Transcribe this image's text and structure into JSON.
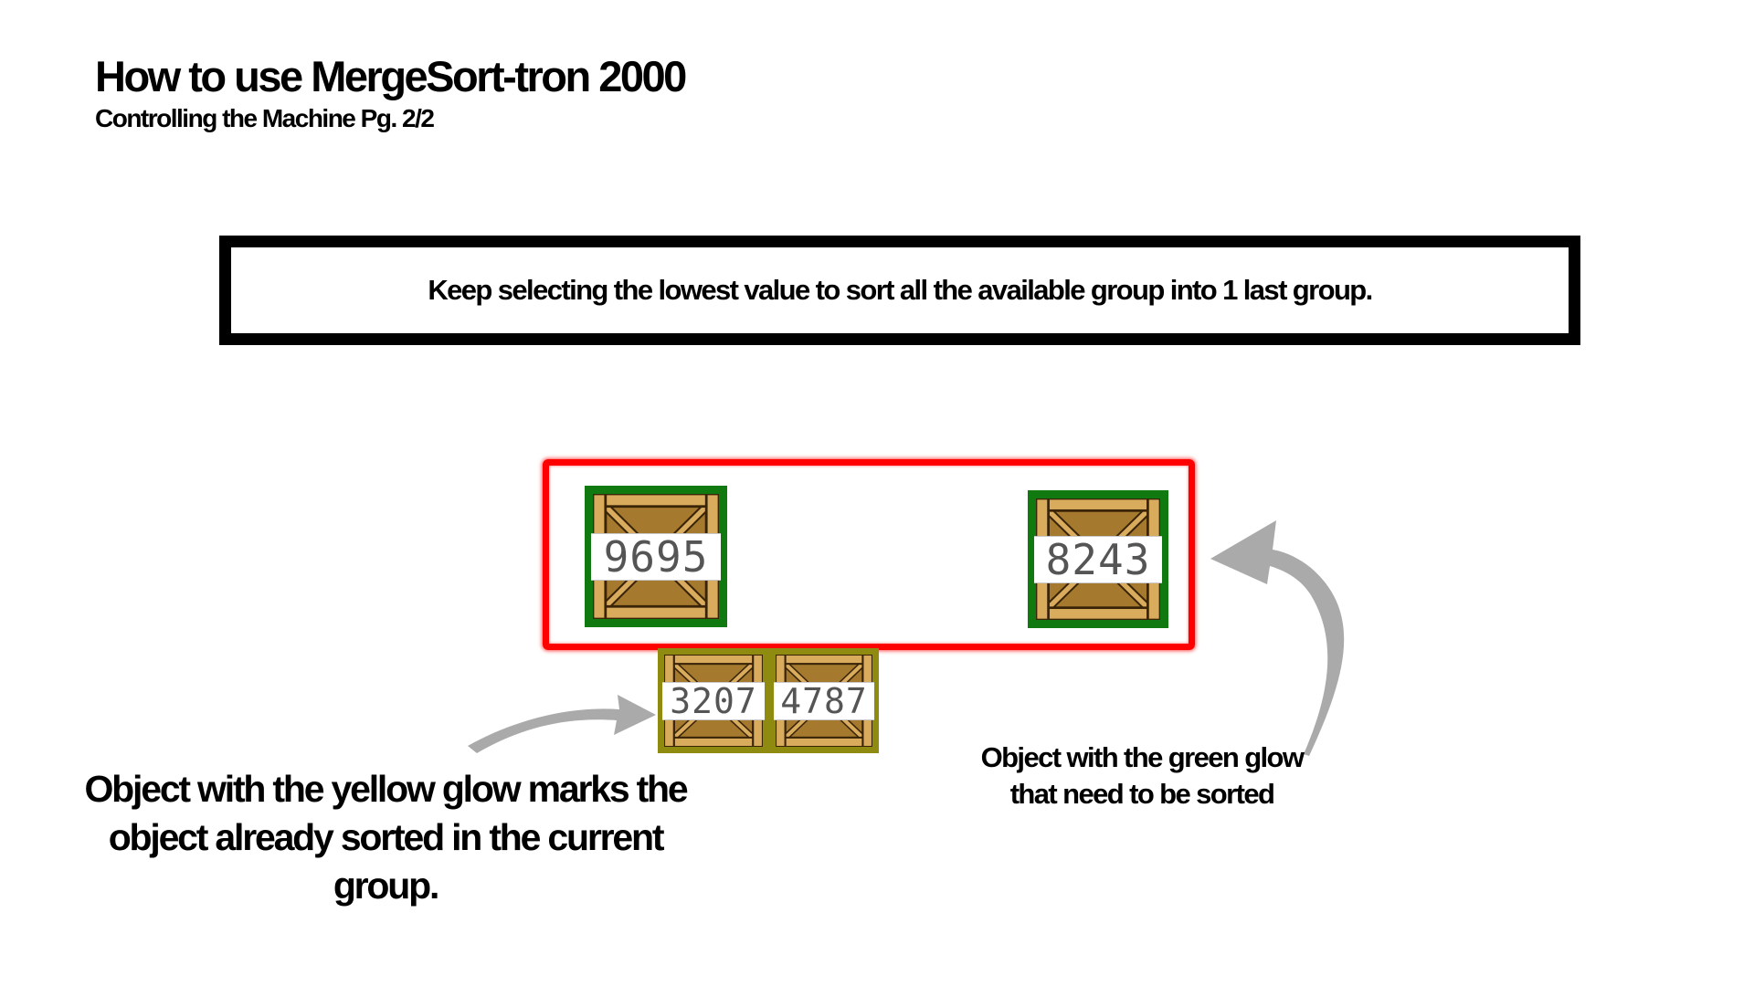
{
  "header": {
    "title": "How to use MergeSort-tron 2000",
    "subtitle": "Controlling the Machine Pg. 2/2"
  },
  "instruction": {
    "text": "Keep selecting the lowest value to sort all the available group into 1 last group."
  },
  "crates": {
    "green": [
      {
        "value": "9695"
      },
      {
        "value": "8243"
      }
    ],
    "yellow": [
      {
        "value": "3207"
      },
      {
        "value": "4787"
      }
    ]
  },
  "captions": {
    "yellow_glow": "Object with the yellow glow marks the object already sorted in the current group.",
    "green_glow": "Object with the green glow that need to be sorted"
  },
  "colors": {
    "green_glow": "#107a10",
    "yellow_glow": "#8f8a10",
    "group_border": "#ff0000",
    "arrow": "#aaaaaa"
  }
}
